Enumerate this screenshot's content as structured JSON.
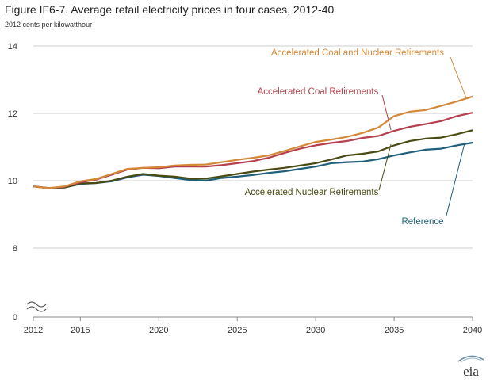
{
  "chart_data": {
    "type": "line",
    "title": "Figure IF6-7. Average retail electricity prices in four cases, 2012-40",
    "subtitle": "2012 cents per kilowatthour",
    "xlim": [
      2012,
      2040
    ],
    "ylim": [
      0,
      14
    ],
    "axis_break": "between 0 and 8 on y axis",
    "x_ticks": [
      2012,
      2015,
      2020,
      2025,
      2030,
      2035,
      2040
    ],
    "y_ticks": [
      0,
      8,
      10,
      12,
      14
    ],
    "grid": "horizontal",
    "x": [
      2012,
      2013,
      2014,
      2015,
      2016,
      2017,
      2018,
      2019,
      2020,
      2021,
      2022,
      2023,
      2024,
      2025,
      2026,
      2027,
      2028,
      2029,
      2030,
      2031,
      2032,
      2033,
      2034,
      2035,
      2036,
      2037,
      2038,
      2039,
      2040
    ],
    "series": [
      {
        "name": "Accelerated Coal and Nuclear Retirements",
        "color": "#d4883a",
        "values": [
          9.83,
          9.78,
          9.83,
          9.98,
          10.05,
          10.2,
          10.35,
          10.38,
          10.4,
          10.45,
          10.47,
          10.48,
          10.55,
          10.62,
          10.68,
          10.75,
          10.88,
          11.02,
          11.15,
          11.22,
          11.3,
          11.42,
          11.58,
          11.92,
          12.05,
          12.1,
          12.22,
          12.35,
          12.5
        ]
      },
      {
        "name": "Accelerated Coal Retirements",
        "color": "#b5414e",
        "values": [
          9.83,
          9.78,
          9.82,
          9.95,
          10.03,
          10.18,
          10.33,
          10.38,
          10.37,
          10.42,
          10.42,
          10.42,
          10.46,
          10.52,
          10.58,
          10.68,
          10.82,
          10.95,
          11.05,
          11.12,
          11.18,
          11.27,
          11.33,
          11.48,
          11.6,
          11.68,
          11.77,
          11.92,
          12.02
        ]
      },
      {
        "name": "Accelerated Nuclear Retirements",
        "color": "#4a4a14",
        "values": [
          9.83,
          9.78,
          9.8,
          9.92,
          9.93,
          10.0,
          10.12,
          10.2,
          10.15,
          10.12,
          10.06,
          10.06,
          10.13,
          10.2,
          10.27,
          10.33,
          10.38,
          10.45,
          10.52,
          10.63,
          10.75,
          10.8,
          10.87,
          11.05,
          11.18,
          11.25,
          11.28,
          11.38,
          11.5
        ]
      },
      {
        "name": "Reference",
        "color": "#1f5f7a",
        "values": [
          9.83,
          9.78,
          9.8,
          9.9,
          9.93,
          9.98,
          10.1,
          10.18,
          10.14,
          10.08,
          10.02,
          10.0,
          10.08,
          10.12,
          10.17,
          10.23,
          10.28,
          10.35,
          10.42,
          10.52,
          10.55,
          10.57,
          10.64,
          10.75,
          10.84,
          10.92,
          10.95,
          11.05,
          11.13
        ]
      }
    ],
    "annotations": [
      "Accelerated Coal and Nuclear Retirements",
      "Accelerated Coal Retirements",
      "Accelerated Nuclear Retirements",
      "Reference"
    ]
  },
  "logo": {
    "text": "eia"
  }
}
